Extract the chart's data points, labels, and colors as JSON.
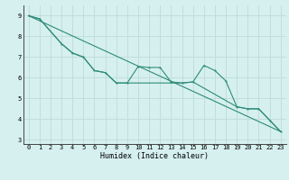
{
  "line1_x": [
    0,
    1,
    3,
    4,
    5,
    6,
    7,
    8,
    9,
    10,
    11,
    12,
    13,
    14,
    15,
    16,
    17,
    18,
    19,
    20,
    21,
    22,
    23
  ],
  "line1_y": [
    9.0,
    8.85,
    7.65,
    7.2,
    7.0,
    6.35,
    6.25,
    5.75,
    5.75,
    6.55,
    6.5,
    6.5,
    5.8,
    5.75,
    5.8,
    6.6,
    6.35,
    5.85,
    4.6,
    4.5,
    4.5,
    3.95,
    3.4
  ],
  "line2_x": [
    0,
    23
  ],
  "line2_y": [
    9.0,
    3.4
  ],
  "line3_x": [
    0,
    1,
    3,
    4,
    5,
    6,
    7,
    8,
    9,
    14,
    15,
    19,
    20,
    21,
    22,
    23
  ],
  "line3_y": [
    9.0,
    8.85,
    7.65,
    7.2,
    7.0,
    6.35,
    6.25,
    5.75,
    5.75,
    5.75,
    5.8,
    4.6,
    4.5,
    4.5,
    3.95,
    3.4
  ],
  "color": "#2e8b7a",
  "background_color": "#d6f0ef",
  "grid_color": "#c0dedd",
  "xlabel": "Humidex (Indice chaleur)",
  "xlim": [
    -0.5,
    23.5
  ],
  "ylim": [
    2.8,
    9.5
  ],
  "xticks": [
    0,
    1,
    2,
    3,
    4,
    5,
    6,
    7,
    8,
    9,
    10,
    11,
    12,
    13,
    14,
    15,
    16,
    17,
    18,
    19,
    20,
    21,
    22,
    23
  ],
  "yticks": [
    3,
    4,
    5,
    6,
    7,
    8,
    9
  ]
}
